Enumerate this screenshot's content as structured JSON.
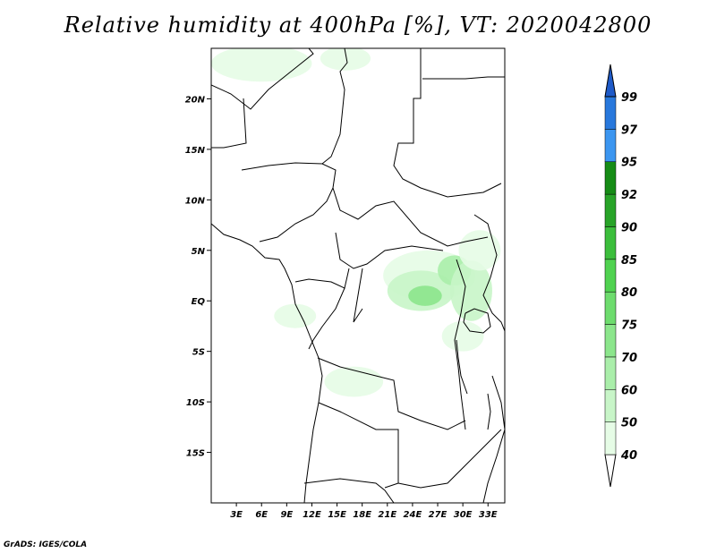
{
  "title": "Relative humidity at 400hPa [%], VT: 2020042800",
  "credit": "GrADS: IGES/COLA",
  "map": {
    "lon_range": [
      0,
      35
    ],
    "lat_range": [
      -20,
      25
    ],
    "lon_ticks": [
      {
        "value": 3,
        "label": "3E"
      },
      {
        "value": 6,
        "label": "6E"
      },
      {
        "value": 9,
        "label": "9E"
      },
      {
        "value": 12,
        "label": "12E"
      },
      {
        "value": 15,
        "label": "15E"
      },
      {
        "value": 18,
        "label": "18E"
      },
      {
        "value": 21,
        "label": "21E"
      },
      {
        "value": 24,
        "label": "24E"
      },
      {
        "value": 27,
        "label": "27E"
      },
      {
        "value": 30,
        "label": "30E"
      },
      {
        "value": 33,
        "label": "33E"
      }
    ],
    "lat_ticks": [
      {
        "value": 20,
        "label": "20N"
      },
      {
        "value": 15,
        "label": "15N"
      },
      {
        "value": 10,
        "label": "10N"
      },
      {
        "value": 5,
        "label": "5N"
      },
      {
        "value": 0,
        "label": "EQ"
      },
      {
        "value": -5,
        "label": "5S"
      },
      {
        "value": -10,
        "label": "10S"
      },
      {
        "value": -15,
        "label": "15S"
      }
    ]
  },
  "colorbar": {
    "levels": [
      "40",
      "50",
      "60",
      "70",
      "75",
      "80",
      "85",
      "90",
      "92",
      "95",
      "97",
      "99"
    ],
    "colors": [
      "#ffffff",
      "#e6fce6",
      "#c8f5c8",
      "#aaeeaa",
      "#8ce68c",
      "#6edc6e",
      "#50d250",
      "#3cbe3c",
      "#28a428",
      "#168c16",
      "#3c96f0",
      "#2878dc",
      "#1e5ac8"
    ]
  },
  "humidity_regions": [
    {
      "lon": 26,
      "lat": 2.5,
      "rx": 5.5,
      "ry": 2.5,
      "level": 1
    },
    {
      "lon": 25,
      "lat": 1,
      "rx": 4,
      "ry": 2,
      "level": 2
    },
    {
      "lon": 25.5,
      "lat": 0.5,
      "rx": 2,
      "ry": 1,
      "level": 4
    },
    {
      "lon": 29,
      "lat": 3,
      "rx": 2,
      "ry": 1.5,
      "level": 3
    },
    {
      "lon": 31,
      "lat": 1,
      "rx": 2.5,
      "ry": 3,
      "level": 2
    },
    {
      "lon": 32,
      "lat": 5,
      "rx": 2.5,
      "ry": 2,
      "level": 1
    },
    {
      "lon": 6,
      "lat": 23.5,
      "rx": 6,
      "ry": 1.8,
      "level": 1
    },
    {
      "lon": 16,
      "lat": 24,
      "rx": 3,
      "ry": 1.2,
      "level": 1
    },
    {
      "lon": 17,
      "lat": -8,
      "rx": 3.5,
      "ry": 1.5,
      "level": 1
    },
    {
      "lon": 10,
      "lat": -1.5,
      "rx": 2.5,
      "ry": 1.2,
      "level": 1
    },
    {
      "lon": 30,
      "lat": -3.5,
      "rx": 2.5,
      "ry": 1.5,
      "level": 1
    }
  ]
}
